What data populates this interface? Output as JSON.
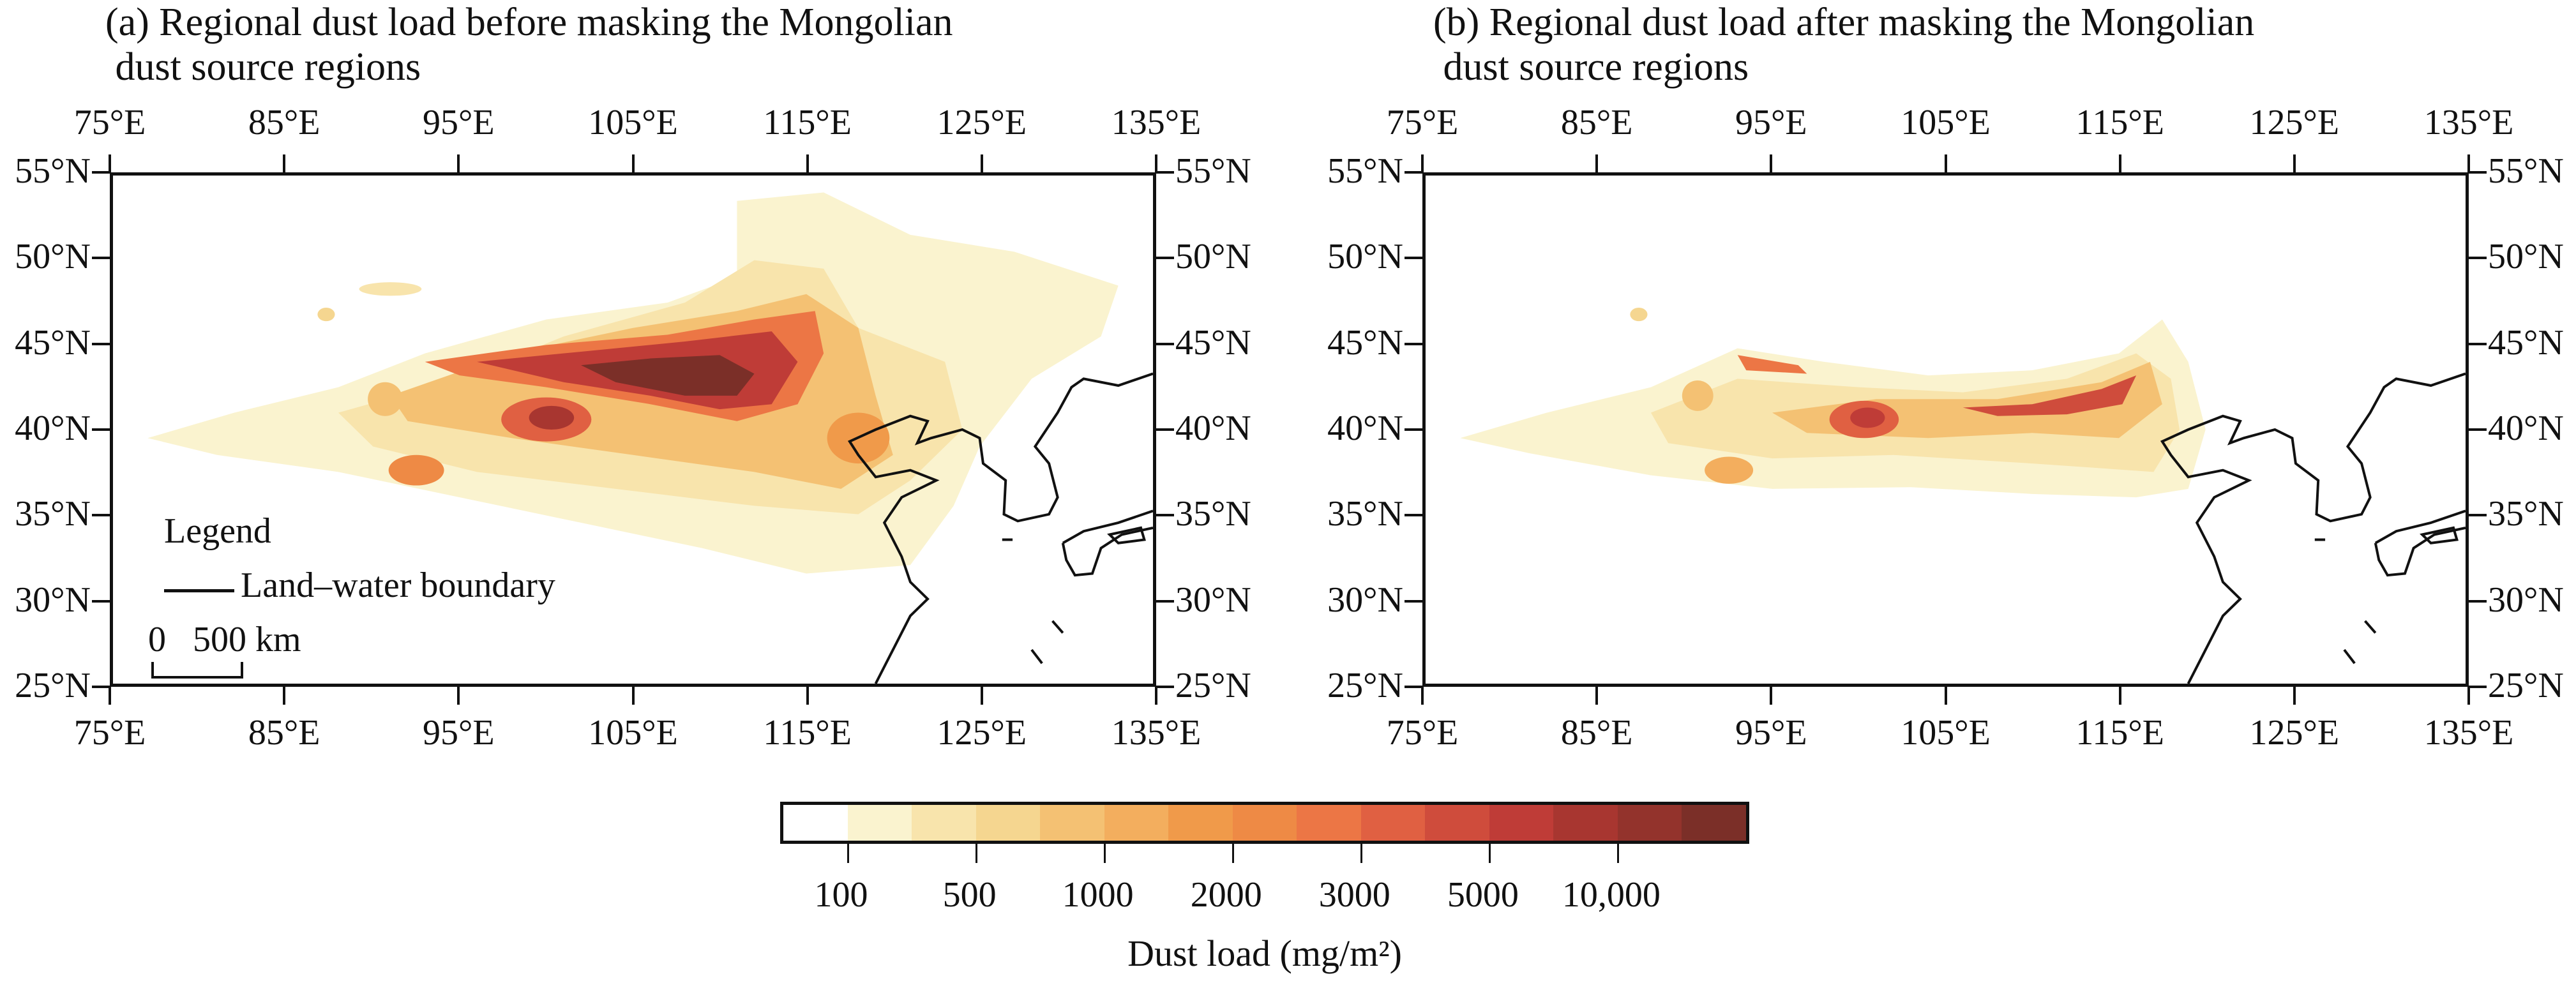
{
  "chart_data": [
    {
      "type": "heatmap",
      "title": "(a) Regional dust load before masking the Mongolian\n dust source regions",
      "x_ticks": [
        "75°E",
        "85°E",
        "95°E",
        "105°E",
        "115°E",
        "125°E",
        "135°E"
      ],
      "y_ticks": [
        "55°N",
        "50°N",
        "45°N",
        "40°N",
        "35°N",
        "30°N",
        "25°N"
      ],
      "xlim": [
        75,
        135
      ],
      "ylim": [
        25,
        55
      ],
      "legend": {
        "title": "Legend",
        "items": [
          "Land–water boundary"
        ],
        "scale_zero": "0",
        "scale_label": "500 km"
      }
    },
    {
      "type": "heatmap",
      "title": "(b) Regional dust load after masking the Mongolian\n dust source regions",
      "x_ticks": [
        "75°E",
        "85°E",
        "95°E",
        "105°E",
        "115°E",
        "125°E",
        "135°E"
      ],
      "y_ticks": [
        "55°N",
        "50°N",
        "45°N",
        "40°N",
        "35°N",
        "30°N",
        "25°N"
      ],
      "xlim": [
        75,
        135
      ],
      "ylim": [
        25,
        55
      ]
    }
  ],
  "colorbar": {
    "label": "Dust load (mg/m²)",
    "tick_labels": [
      "100",
      "500",
      "1000",
      "2000",
      "3000",
      "5000",
      "10,000"
    ],
    "colors": [
      "#ffffff",
      "#faf3cf",
      "#f8e4ac",
      "#f5d690",
      "#f4c173",
      "#f3ae5e",
      "#f09a4a",
      "#ee8a45",
      "#ec7645",
      "#e06042",
      "#cf4c3c",
      "#bf3c37",
      "#a83630",
      "#93332c",
      "#7b2f28"
    ]
  }
}
